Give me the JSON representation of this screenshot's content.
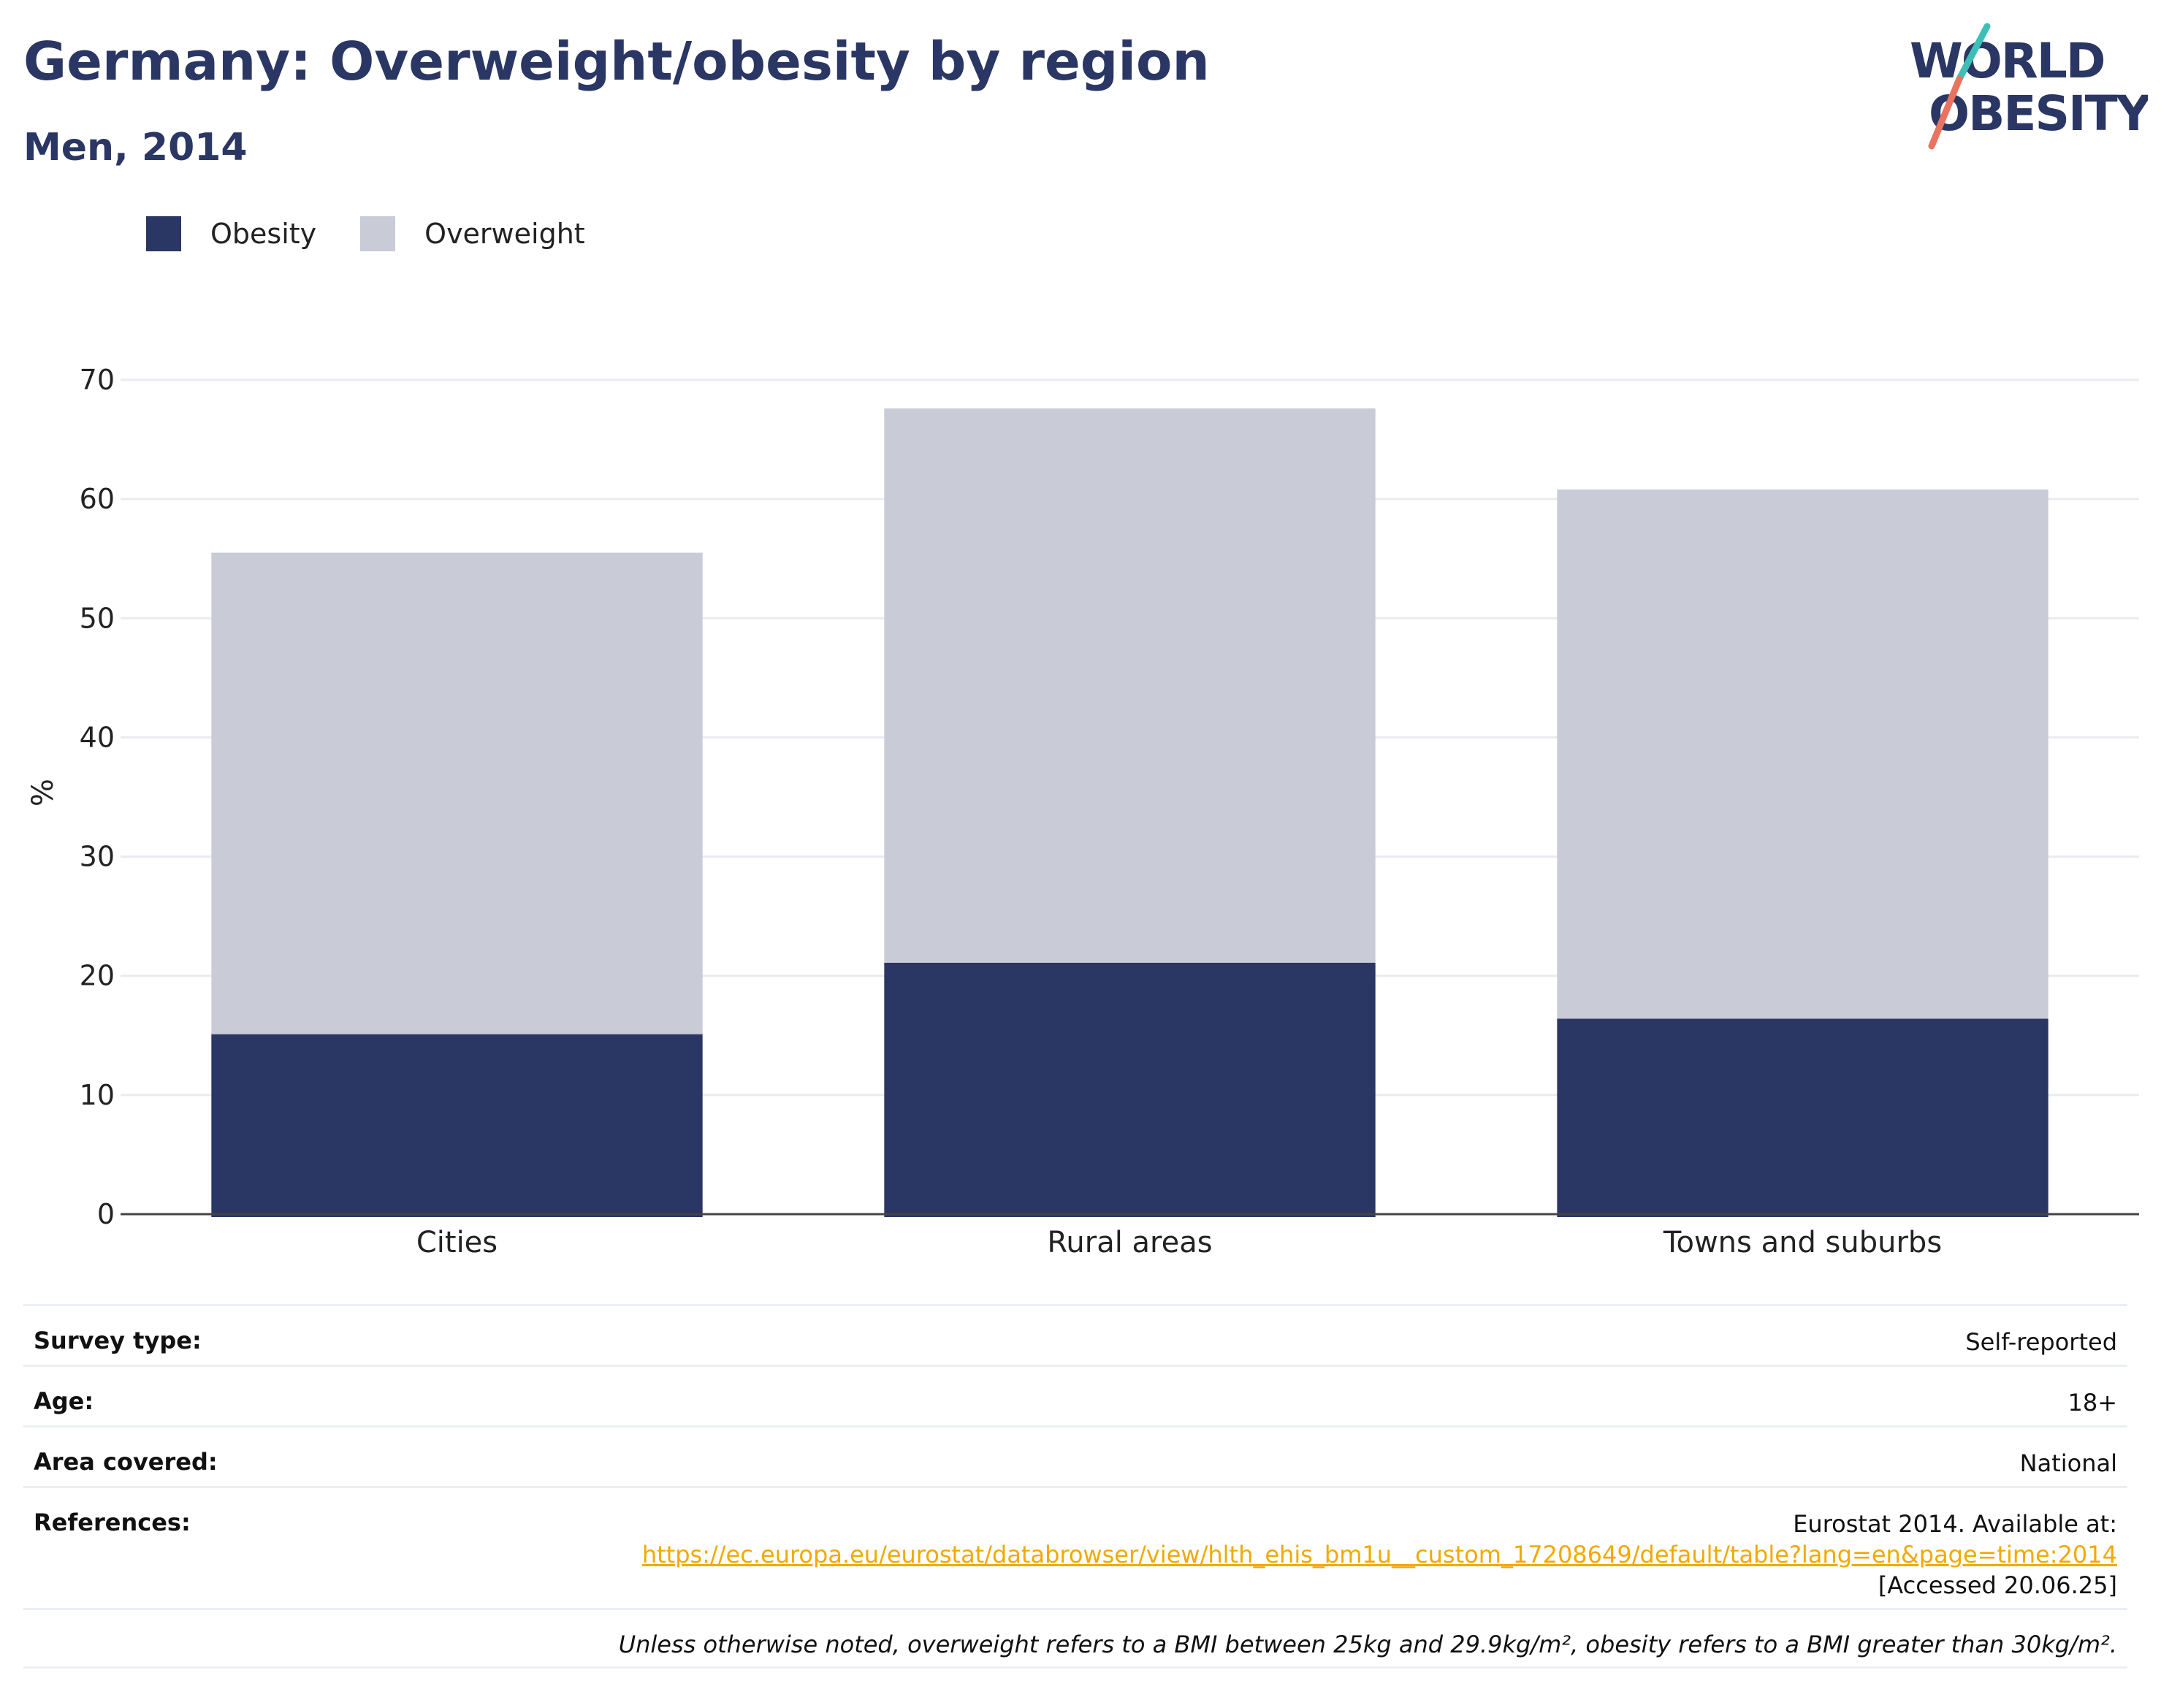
{
  "header": {
    "title": "Germany: Overweight/obesity by region",
    "subtitle": "Men, 2014"
  },
  "logo": {
    "line1": "WORLD",
    "line2": "OBESITY",
    "colors": {
      "text": "#2a3663",
      "teal": "#3dbfb8",
      "coral": "#e8735f"
    }
  },
  "legend": {
    "items": [
      {
        "label": "Obesity",
        "color": "#2a3663"
      },
      {
        "label": "Overweight",
        "color": "#c9cbd7"
      }
    ]
  },
  "chart_data": {
    "type": "bar",
    "stacked": true,
    "categories": [
      "Cities",
      "Rural areas",
      "Towns and suburbs"
    ],
    "series": [
      {
        "name": "Obesity",
        "values": [
          15.1,
          21.1,
          16.4
        ],
        "color": "#2a3663"
      },
      {
        "name": "Overweight",
        "values": [
          40.4,
          46.5,
          44.4
        ],
        "color": "#c9cbd7"
      }
    ],
    "xlabel": "",
    "ylabel": "%",
    "ylim": [
      0,
      70
    ],
    "yticks": [
      0,
      10,
      20,
      30,
      40,
      50,
      60,
      70
    ],
    "grid": true,
    "legend_position": "top-left"
  },
  "info": {
    "survey_type": {
      "label": "Survey type:",
      "value": "Self-reported"
    },
    "age": {
      "label": "Age:",
      "value": "18+"
    },
    "area": {
      "label": "Area covered:",
      "value": "National"
    },
    "references": {
      "label": "References:",
      "line1": "Eurostat 2014. Available at:",
      "link": "https://ec.europa.eu/eurostat/databrowser/view/hlth_ehis_bm1u__custom_17208649/default/table?lang=en&page=time:2014",
      "line3": "[Accessed 20.06.25]"
    },
    "footnote": "Unless otherwise noted, overweight refers to a BMI between 25kg and 29.9kg/m², obesity refers to a BMI greater than 30kg/m²."
  }
}
